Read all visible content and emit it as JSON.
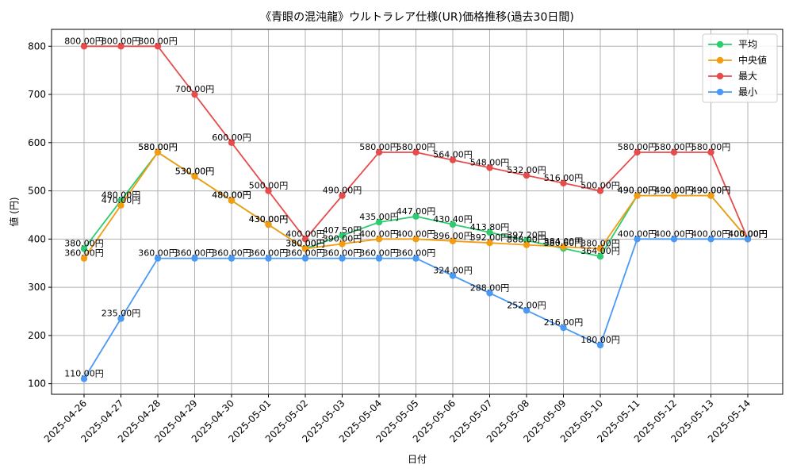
{
  "chart_data": {
    "type": "line",
    "title": "《青眼の混沌龍》ウルトラレア仕様(UR)価格推移(過去30日間)",
    "xlabel": "日付",
    "ylabel": "値 (円)",
    "ylim": [
      78,
      835
    ],
    "y_ticks": [
      100,
      200,
      300,
      400,
      500,
      600,
      700,
      800
    ],
    "grid": true,
    "legend_position": "top-right",
    "label_suffix": "円",
    "categories": [
      "2025-04-26",
      "2025-04-27",
      "2025-04-28",
      "2025-04-29",
      "2025-04-30",
      "2025-05-01",
      "2025-05-02",
      "2025-05-03",
      "2025-05-04",
      "2025-05-05",
      "2025-05-06",
      "2025-05-07",
      "2025-05-08",
      "2025-05-09",
      "2025-05-10",
      "2025-05-11",
      "2025-05-12",
      "2025-05-13",
      "2025-05-14"
    ],
    "series": [
      {
        "name": "平均",
        "color": "#2ecc71",
        "values": [
          380,
          480,
          580,
          530,
          480,
          430,
          380,
          407.5,
          435,
          447,
          430.4,
          413.8,
          397.2,
          380.6,
          364,
          490,
          490,
          490,
          400
        ]
      },
      {
        "name": "中央値",
        "color": "#f39c12",
        "values": [
          360,
          470,
          580,
          530,
          480,
          430,
          380,
          390,
          400,
          400,
          396,
          392,
          388,
          384,
          380,
          490,
          490,
          490,
          400
        ]
      },
      {
        "name": "最大",
        "color": "#e74c4c",
        "values": [
          800,
          800,
          800,
          700,
          600,
          500,
          400,
          490,
          580,
          580,
          564,
          548,
          532,
          516,
          500,
          580,
          580,
          580,
          400
        ]
      },
      {
        "name": "最小",
        "color": "#4a9af5",
        "values": [
          110,
          235,
          360,
          360,
          360,
          360,
          360,
          360,
          360,
          360,
          324,
          288,
          252,
          216,
          180,
          400,
          400,
          400,
          400
        ]
      }
    ]
  }
}
